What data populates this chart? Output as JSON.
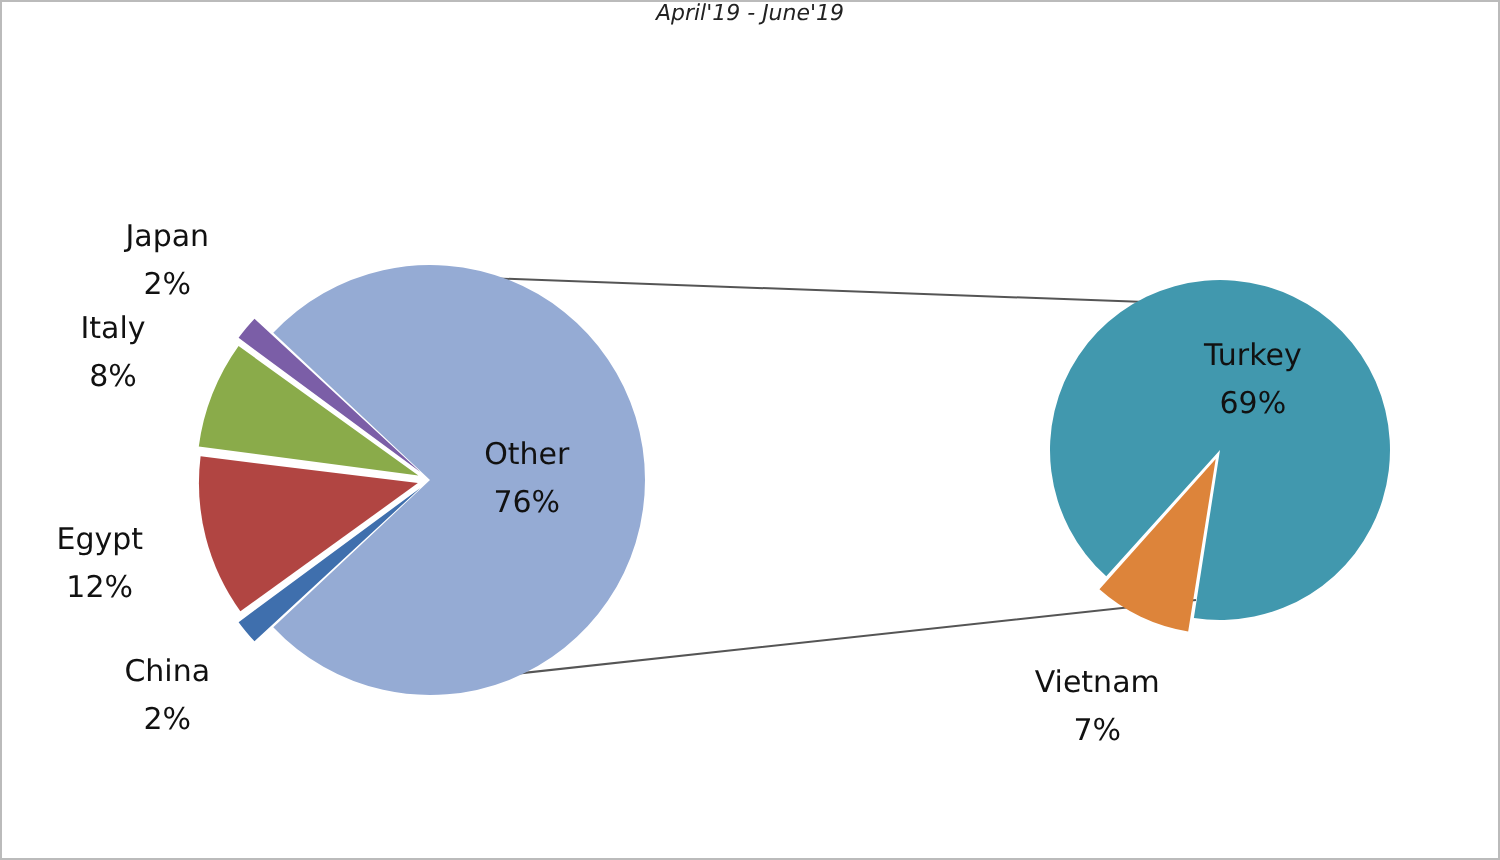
{
  "chart_data": [
    {
      "type": "pie",
      "title": "April'19 - June'19",
      "categories": [
        "Other",
        "China",
        "Egypt",
        "Italy",
        "Japan"
      ],
      "values": [
        76,
        2,
        12,
        8,
        2
      ],
      "value_labels": [
        "76%",
        "2%",
        "12%",
        "8%",
        "2%"
      ],
      "colors": [
        "#95abd4",
        "#3f6fad",
        "#b14542",
        "#8aab4a",
        "#7b5ea7"
      ],
      "legend": false
    },
    {
      "type": "pie",
      "categories": [
        "Turkey",
        "Vietnam"
      ],
      "values": [
        69,
        7
      ],
      "value_labels": [
        "69%",
        "7%"
      ],
      "colors": [
        "#4198ae",
        "#dd843a"
      ],
      "legend": false
    }
  ]
}
